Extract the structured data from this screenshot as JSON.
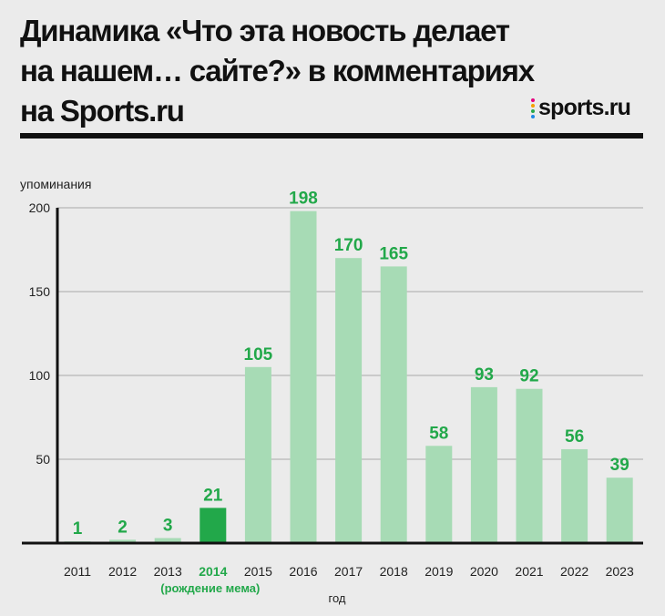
{
  "title_lines": [
    "Динамика «Что эта новость делает",
    "на нашем… сайте?» в комментариях",
    "на Sports.ru"
  ],
  "logo": {
    "text": "sports.ru",
    "dot_colors": [
      "#e5007e",
      "#f5a000",
      "#2aa84a",
      "#1e88e5"
    ]
  },
  "colors": {
    "bar": "#a7dbb5",
    "highlight_bar": "#22a84a",
    "label": "#22a84a",
    "grid": "#aaaaaa",
    "axis": "#111111"
  },
  "chart_data": {
    "type": "bar",
    "title": "Динамика «Что эта новость делает на нашем… сайте?» в комментариях на Sports.ru",
    "ylabel": "упоминания",
    "xlabel": "год",
    "ylim": [
      0,
      200
    ],
    "yticks": [
      50,
      100,
      150,
      200
    ],
    "categories": [
      "2011",
      "2012",
      "2013",
      "2014",
      "2015",
      "2016",
      "2017",
      "2018",
      "2019",
      "2020",
      "2021",
      "2022",
      "2023"
    ],
    "values": [
      1,
      2,
      3,
      21,
      105,
      198,
      170,
      165,
      58,
      93,
      92,
      56,
      39
    ],
    "highlight_index": 3,
    "highlight_note": "(рождение мема)"
  }
}
